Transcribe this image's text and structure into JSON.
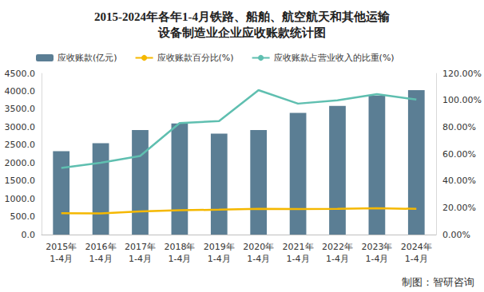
{
  "chart_data": {
    "type": "bar",
    "title": "2015-2024年各年1-4月铁路、船舶、航空航天和其他运输\n设备制造业企业应收账款统计图",
    "categories": [
      "2015年\n1-4月",
      "2016年\n1-4月",
      "2017年\n1-4月",
      "2018年\n1-4月",
      "2019年\n1-4月",
      "2020年\n1-4月",
      "2021年\n1-4月",
      "2022年\n1-4月",
      "2023年\n1-4月",
      "2024年\n1-4月"
    ],
    "series": [
      {
        "name": "应收账款(亿元)",
        "type": "bar",
        "color": "#5b7e94",
        "values": [
          2330,
          2550,
          2920,
          3100,
          2820,
          2920,
          3400,
          3590,
          3880,
          4030
        ]
      },
      {
        "name": "应收账款百分比(%)",
        "type": "line",
        "axis": "y2",
        "color": "#f5b800",
        "values": [
          15.9,
          15.8,
          17.3,
          18.1,
          18.5,
          19.1,
          19.0,
          19.2,
          19.6,
          19.1
        ]
      },
      {
        "name": "应收账款占营业收入的比重(%)",
        "type": "line",
        "axis": "y2",
        "color": "#5fbfb0",
        "values": [
          49.6,
          53.5,
          58.5,
          83.0,
          84.5,
          107.5,
          97.5,
          100.0,
          104.5,
          100.5
        ]
      }
    ],
    "ylim": [
      0,
      4500
    ],
    "yticks": [
      {
        "value": 0,
        "label": "0.0"
      },
      {
        "value": 500,
        "label": "500.0"
      },
      {
        "value": 1000,
        "label": "1000.0"
      },
      {
        "value": 1500,
        "label": "1500.0"
      },
      {
        "value": 2000,
        "label": "2000.0"
      },
      {
        "value": 2500,
        "label": "2500.0"
      },
      {
        "value": 3000,
        "label": "3000.0"
      },
      {
        "value": 3500,
        "label": "3500.0"
      },
      {
        "value": 4000,
        "label": "4000.0"
      },
      {
        "value": 4500,
        "label": "4500.0"
      }
    ],
    "y2lim": [
      0,
      120
    ],
    "y2ticks": [
      {
        "value": 0,
        "label": "0.00%"
      },
      {
        "value": 20,
        "label": "20.00%"
      },
      {
        "value": 40,
        "label": "40.00%"
      },
      {
        "value": 60,
        "label": "60.00%"
      },
      {
        "value": 80,
        "label": "80.00%"
      },
      {
        "value": 100,
        "label": "100.00%"
      },
      {
        "value": 120,
        "label": "120.00%"
      }
    ],
    "grid": false,
    "legend": "top",
    "annotations": [
      "制图：智研咨询"
    ]
  }
}
